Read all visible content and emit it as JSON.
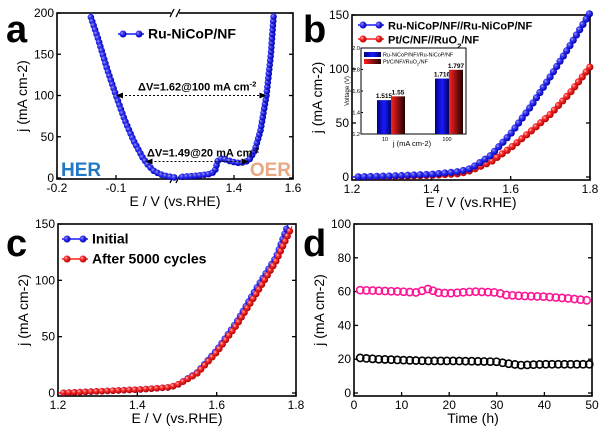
{
  "chart_data": [
    {
      "panel": "a",
      "type": "scatter",
      "xlabel": "E / V (vs.RHE)",
      "ylabel": "j (mA cm-2)",
      "xlim_segments": [
        [
          -0.2,
          0.0
        ],
        [
          1.2,
          1.6
        ]
      ],
      "ylim": [
        0,
        200
      ],
      "xticks": [
        -0.2,
        -0.1,
        1.4,
        1.6
      ],
      "yticks": [
        0,
        50,
        100,
        150,
        200
      ],
      "broken_axis": true,
      "series": [
        {
          "name": "Ru-NiCoP/NF",
          "color": "#1a1aff",
          "segments": [
            [
              [
                -0.145,
                200
              ],
              [
                -0.13,
                168
              ],
              [
                -0.115,
                132
              ],
              [
                -0.1,
                100
              ],
              [
                -0.085,
                70
              ],
              [
                -0.07,
                45
              ],
              [
                -0.055,
                25
              ],
              [
                -0.045,
                15
              ],
              [
                -0.035,
                8
              ],
              [
                -0.02,
                3
              ],
              [
                0,
                0.5
              ]
            ],
            [
              [
                1.21,
                1
              ],
              [
                1.28,
                3
              ],
              [
                1.32,
                5
              ],
              [
                1.335,
                8
              ],
              [
                1.345,
                21
              ],
              [
                1.36,
                24
              ],
              [
                1.39,
                20
              ],
              [
                1.42,
                18
              ],
              [
                1.45,
                21
              ],
              [
                1.47,
                33
              ],
              [
                1.49,
                58
              ],
              [
                1.51,
                100
              ],
              [
                1.525,
                150
              ],
              [
                1.535,
                200
              ]
            ]
          ]
        }
      ],
      "annotations": [
        {
          "text": "ΔV=1.62@100 mA cm-2",
          "j": 100,
          "from": -0.1,
          "to": 1.51
        },
        {
          "text": "ΔV=1.49@20 mA cm-2",
          "j": 20,
          "from": -0.05,
          "to": 1.45
        }
      ],
      "region_labels": [
        {
          "text": "HER",
          "color": "#1f78c8"
        },
        {
          "text": "OER",
          "color": "#e8a882"
        }
      ]
    },
    {
      "panel": "b",
      "type": "scatter",
      "xlabel": "E / V (vs.RHE)",
      "ylabel": "j (mA cm-2)",
      "xlim": [
        1.2,
        1.8
      ],
      "ylim": [
        0,
        150
      ],
      "xticks": [
        1.2,
        1.4,
        1.6,
        1.8
      ],
      "yticks": [
        0,
        50,
        100,
        150
      ],
      "series": [
        {
          "name": "Ru-NiCoP/NF//Ru-NiCoP/NF",
          "color": "#1a1aff",
          "points": [
            [
              1.2,
              0
            ],
            [
              1.3,
              1
            ],
            [
              1.4,
              2.5
            ],
            [
              1.47,
              5
            ],
            [
              1.5,
              8
            ],
            [
              1.55,
              20
            ],
            [
              1.6,
              40
            ],
            [
              1.65,
              65
            ],
            [
              1.7,
              93
            ],
            [
              1.75,
              122
            ],
            [
              1.8,
              152
            ]
          ]
        },
        {
          "name": "Pt/C/NF//RuO2/NF",
          "color": "#ff2020",
          "points": [
            [
              1.2,
              0
            ],
            [
              1.3,
              0.5
            ],
            [
              1.4,
              1.5
            ],
            [
              1.47,
              3
            ],
            [
              1.5,
              6
            ],
            [
              1.55,
              14
            ],
            [
              1.6,
              27
            ],
            [
              1.65,
              42
            ],
            [
              1.7,
              58
            ],
            [
              1.75,
              78
            ],
            [
              1.8,
              102
            ]
          ]
        }
      ],
      "inset": {
        "type": "bar",
        "ylabel": "Voltage (V)",
        "xlabel": "j (mA cm-2)",
        "ylim": [
          1.2,
          2.0
        ],
        "yticks": [
          1.2,
          1.4,
          1.6,
          1.8,
          2.0
        ],
        "categories": [
          "10",
          "100"
        ],
        "series": [
          {
            "name": "Ru-NiCoP/NF//Ru-NiCoP/NF",
            "color": "#1a1aff",
            "values": [
              1.515,
              1.716
            ],
            "labels": [
              "1.515",
              "1.716"
            ]
          },
          {
            "name": "Pt/C/NF//RuO2/NF",
            "color": "#ff2020",
            "values": [
              1.55,
              1.797
            ],
            "labels": [
              "1.55",
              "1.797"
            ]
          }
        ]
      }
    },
    {
      "panel": "c",
      "type": "scatter",
      "xlabel": "E / V (vs.RHE)",
      "ylabel": "j (mA cm-2)",
      "xlim": [
        1.2,
        1.8
      ],
      "ylim": [
        0,
        150
      ],
      "xticks": [
        1.2,
        1.4,
        1.6,
        1.8
      ],
      "yticks": [
        0,
        50,
        100,
        150
      ],
      "series": [
        {
          "name": "Initial",
          "color": "#1a1aff",
          "points": [
            [
              1.2,
              0
            ],
            [
              1.3,
              1.5
            ],
            [
              1.4,
              3
            ],
            [
              1.48,
              5
            ],
            [
              1.5,
              7
            ],
            [
              1.55,
              18
            ],
            [
              1.6,
              38
            ],
            [
              1.65,
              63
            ],
            [
              1.7,
              93
            ],
            [
              1.75,
              121
            ],
            [
              1.78,
              150
            ]
          ]
        },
        {
          "name": "After 5000 cycles",
          "color": "#ff2020",
          "points": [
            [
              1.2,
              0
            ],
            [
              1.3,
              1.5
            ],
            [
              1.4,
              3
            ],
            [
              1.48,
              5
            ],
            [
              1.5,
              7
            ],
            [
              1.55,
              17
            ],
            [
              1.6,
              36
            ],
            [
              1.65,
              60
            ],
            [
              1.7,
              88
            ],
            [
              1.75,
              117
            ],
            [
              1.79,
              148
            ]
          ]
        }
      ]
    },
    {
      "panel": "d",
      "type": "scatter",
      "xlabel": "Time (h)",
      "ylabel": "j (mA cm-2)",
      "xlim": [
        0,
        50
      ],
      "ylim": [
        0,
        100
      ],
      "xticks": [
        0,
        10,
        20,
        30,
        40,
        50
      ],
      "yticks": [
        0,
        20,
        40,
        60,
        80,
        100
      ],
      "series": [
        {
          "color": "#ff1493",
          "points": [
            [
              0,
              61
            ],
            [
              5,
              60.5
            ],
            [
              10,
              60
            ],
            [
              13,
              59.5
            ],
            [
              15,
              61
            ],
            [
              16,
              62
            ],
            [
              17,
              59.5
            ],
            [
              20,
              59
            ],
            [
              25,
              60
            ],
            [
              30,
              59.5
            ],
            [
              32,
              58
            ],
            [
              35,
              57.5
            ],
            [
              40,
              57
            ],
            [
              45,
              56
            ],
            [
              50,
              54.5
            ]
          ]
        },
        {
          "color": "#000000",
          "points": [
            [
              0,
              21
            ],
            [
              5,
              20
            ],
            [
              10,
              19.5
            ],
            [
              15,
              19
            ],
            [
              20,
              19
            ],
            [
              25,
              18.8
            ],
            [
              30,
              18.5
            ],
            [
              32,
              17.5
            ],
            [
              35,
              16.5
            ],
            [
              40,
              17
            ],
            [
              45,
              17
            ],
            [
              50,
              17
            ]
          ]
        }
      ]
    }
  ]
}
